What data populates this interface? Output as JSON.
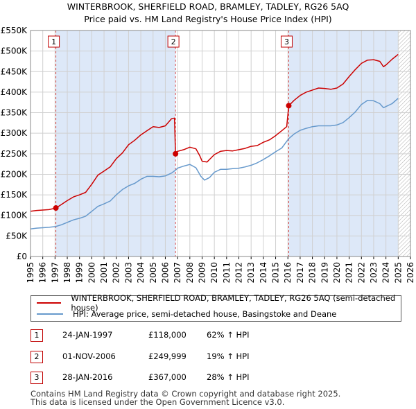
{
  "title_line1": "WINTERBROOK, SHERFIELD ROAD, BRAMLEY, TADLEY, RG26 5AQ",
  "title_line2": "Price paid vs. HM Land Registry's House Price Index (HPI)",
  "colors": {
    "property": "#cc0000",
    "hpi": "#6699cc",
    "shade": "#dde8f8",
    "grid": "#d0d0d0",
    "marker": "#cc0000"
  },
  "chart_data": {
    "type": "line",
    "xlim": [
      1995,
      2026
    ],
    "ylim": [
      0,
      550000
    ],
    "x_ticks": [
      "1995",
      "1996",
      "1997",
      "1998",
      "1999",
      "2000",
      "2001",
      "2002",
      "2003",
      "2004",
      "2005",
      "2006",
      "2007",
      "2008",
      "2009",
      "2010",
      "2011",
      "2012",
      "2013",
      "2014",
      "2015",
      "2016",
      "2017",
      "2018",
      "2019",
      "2020",
      "2021",
      "2022",
      "2023",
      "2024",
      "2025",
      "2026"
    ],
    "y_ticks": [
      {
        "value": 0,
        "label": "£0"
      },
      {
        "value": 50000,
        "label": "£50K"
      },
      {
        "value": 100000,
        "label": "£100K"
      },
      {
        "value": 150000,
        "label": "£150K"
      },
      {
        "value": 200000,
        "label": "£200K"
      },
      {
        "value": 250000,
        "label": "£250K"
      },
      {
        "value": 300000,
        "label": "£300K"
      },
      {
        "value": 350000,
        "label": "£350K"
      },
      {
        "value": 400000,
        "label": "£400K"
      },
      {
        "value": 450000,
        "label": "£450K"
      },
      {
        "value": 500000,
        "label": "£500K"
      },
      {
        "value": 550000,
        "label": "£550K"
      }
    ],
    "shaded_spans": [
      [
        1997.07,
        2006.83
      ],
      [
        2016.07,
        2025.0
      ]
    ],
    "future_hatch_start": 2025.0,
    "series": [
      {
        "name": "WINTERBROOK, SHERFIELD ROAD, BRAMLEY, TADLEY, RG26 5AQ (semi-detached house)",
        "color": "#cc0000",
        "points": [
          [
            1995.0,
            110000
          ],
          [
            1995.5,
            112000
          ],
          [
            1996.0,
            113000
          ],
          [
            1996.5,
            114000
          ],
          [
            1997.07,
            118000
          ],
          [
            1997.5,
            126000
          ],
          [
            1998.0,
            136000
          ],
          [
            1998.5,
            145000
          ],
          [
            1999.0,
            150000
          ],
          [
            1999.5,
            156000
          ],
          [
            2000.0,
            176000
          ],
          [
            2000.5,
            198000
          ],
          [
            2001.0,
            208000
          ],
          [
            2001.5,
            218000
          ],
          [
            2002.0,
            238000
          ],
          [
            2002.5,
            252000
          ],
          [
            2003.0,
            272000
          ],
          [
            2003.5,
            283000
          ],
          [
            2004.0,
            296000
          ],
          [
            2004.5,
            306000
          ],
          [
            2005.0,
            316000
          ],
          [
            2005.5,
            314000
          ],
          [
            2006.0,
            318000
          ],
          [
            2006.5,
            335000
          ],
          [
            2006.75,
            337000
          ],
          [
            2006.83,
            249999
          ],
          [
            2007.0,
            256000
          ],
          [
            2007.5,
            260000
          ],
          [
            2008.0,
            266000
          ],
          [
            2008.5,
            262000
          ],
          [
            2008.8,
            246000
          ],
          [
            2009.0,
            232000
          ],
          [
            2009.4,
            230000
          ],
          [
            2009.8,
            242000
          ],
          [
            2010.0,
            248000
          ],
          [
            2010.5,
            256000
          ],
          [
            2011.0,
            258000
          ],
          [
            2011.5,
            257000
          ],
          [
            2012.0,
            260000
          ],
          [
            2012.5,
            263000
          ],
          [
            2013.0,
            268000
          ],
          [
            2013.5,
            270000
          ],
          [
            2014.0,
            278000
          ],
          [
            2014.5,
            284000
          ],
          [
            2015.0,
            294000
          ],
          [
            2015.5,
            306000
          ],
          [
            2015.9,
            316000
          ],
          [
            2016.07,
            367000
          ],
          [
            2016.5,
            380000
          ],
          [
            2017.0,
            392000
          ],
          [
            2017.5,
            400000
          ],
          [
            2018.0,
            405000
          ],
          [
            2018.5,
            410000
          ],
          [
            2019.0,
            409000
          ],
          [
            2019.5,
            407000
          ],
          [
            2020.0,
            410000
          ],
          [
            2020.5,
            420000
          ],
          [
            2021.0,
            438000
          ],
          [
            2021.5,
            455000
          ],
          [
            2022.0,
            470000
          ],
          [
            2022.5,
            478000
          ],
          [
            2023.0,
            479000
          ],
          [
            2023.5,
            475000
          ],
          [
            2023.8,
            462000
          ],
          [
            2024.0,
            466000
          ],
          [
            2024.5,
            480000
          ],
          [
            2025.0,
            492000
          ]
        ]
      },
      {
        "name": "HPI: Average price, semi-detached house, Basingstoke and Deane",
        "color": "#6699cc",
        "points": [
          [
            1995.0,
            67000
          ],
          [
            1995.5,
            69000
          ],
          [
            1996.0,
            70000
          ],
          [
            1996.5,
            71000
          ],
          [
            1997.07,
            73000
          ],
          [
            1997.5,
            77000
          ],
          [
            1998.0,
            83000
          ],
          [
            1998.5,
            89000
          ],
          [
            1999.0,
            93000
          ],
          [
            1999.5,
            98000
          ],
          [
            2000.0,
            110000
          ],
          [
            2000.5,
            122000
          ],
          [
            2001.0,
            128000
          ],
          [
            2001.5,
            135000
          ],
          [
            2002.0,
            150000
          ],
          [
            2002.5,
            163000
          ],
          [
            2003.0,
            172000
          ],
          [
            2003.5,
            178000
          ],
          [
            2004.0,
            188000
          ],
          [
            2004.5,
            195000
          ],
          [
            2005.0,
            195000
          ],
          [
            2005.5,
            194000
          ],
          [
            2006.0,
            196000
          ],
          [
            2006.5,
            203000
          ],
          [
            2006.83,
            210000
          ],
          [
            2007.0,
            215000
          ],
          [
            2007.5,
            220000
          ],
          [
            2008.0,
            224000
          ],
          [
            2008.5,
            216000
          ],
          [
            2008.9,
            195000
          ],
          [
            2009.2,
            186000
          ],
          [
            2009.6,
            192000
          ],
          [
            2010.0,
            205000
          ],
          [
            2010.5,
            212000
          ],
          [
            2011.0,
            212000
          ],
          [
            2011.5,
            214000
          ],
          [
            2012.0,
            215000
          ],
          [
            2012.5,
            218000
          ],
          [
            2013.0,
            222000
          ],
          [
            2013.5,
            228000
          ],
          [
            2014.0,
            236000
          ],
          [
            2014.5,
            245000
          ],
          [
            2015.0,
            255000
          ],
          [
            2015.5,
            264000
          ],
          [
            2016.07,
            287000
          ],
          [
            2016.5,
            298000
          ],
          [
            2017.0,
            307000
          ],
          [
            2017.5,
            312000
          ],
          [
            2018.0,
            316000
          ],
          [
            2018.5,
            318000
          ],
          [
            2019.0,
            318000
          ],
          [
            2019.5,
            318000
          ],
          [
            2020.0,
            320000
          ],
          [
            2020.5,
            326000
          ],
          [
            2021.0,
            338000
          ],
          [
            2021.5,
            352000
          ],
          [
            2022.0,
            370000
          ],
          [
            2022.5,
            380000
          ],
          [
            2023.0,
            379000
          ],
          [
            2023.5,
            372000
          ],
          [
            2023.8,
            362000
          ],
          [
            2024.0,
            365000
          ],
          [
            2024.5,
            372000
          ],
          [
            2025.0,
            385000
          ]
        ]
      }
    ],
    "sales": [
      {
        "id": "1",
        "x": 1997.07,
        "y": 118000
      },
      {
        "id": "2",
        "x": 2006.83,
        "y": 249999
      },
      {
        "id": "3",
        "x": 2016.07,
        "y": 367000
      }
    ]
  },
  "legend": {
    "property_label": "WINTERBROOK, SHERFIELD ROAD, BRAMLEY, TADLEY, RG26 5AQ (semi-detached house)",
    "hpi_label": "HPI: Average price, semi-detached house, Basingstoke and Deane"
  },
  "sales_table": [
    {
      "id": "1",
      "date": "24-JAN-1997",
      "price": "£118,000",
      "hpi": "62% ↑ HPI"
    },
    {
      "id": "2",
      "date": "01-NOV-2006",
      "price": "£249,999",
      "hpi": "19% ↑ HPI"
    },
    {
      "id": "3",
      "date": "28-JAN-2016",
      "price": "£367,000",
      "hpi": "28% ↑ HPI"
    }
  ],
  "footer_line1": "Contains HM Land Registry data © Crown copyright and database right 2025.",
  "footer_line2": "This data is licensed under the Open Government Licence v3.0."
}
